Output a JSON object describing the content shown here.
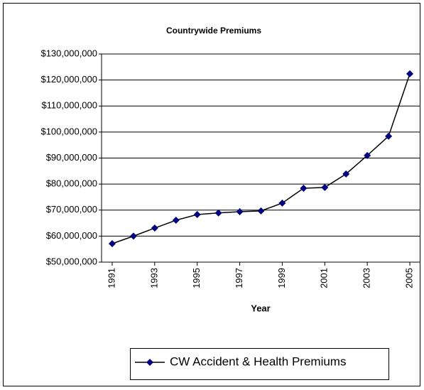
{
  "chart_data": {
    "type": "line",
    "title": "Countrywide Premiums",
    "x_label": "Year",
    "x": [
      1991,
      1992,
      1993,
      1994,
      1995,
      1996,
      1997,
      1998,
      1999,
      2000,
      2001,
      2002,
      2003,
      2004,
      2005
    ],
    "xlim": [
      1990.5,
      2005.5
    ],
    "xticks": [
      1991,
      1993,
      1995,
      1997,
      1999,
      2001,
      2003,
      2005
    ],
    "series": [
      {
        "name": "CW Accident & Health Premiums",
        "color": "#000080",
        "values": [
          57100000,
          60000000,
          63100000,
          66100000,
          68300000,
          68900000,
          69400000,
          69700000,
          72700000,
          78400000,
          78700000,
          83900000,
          91000000,
          98400000,
          122400000
        ]
      }
    ],
    "line_color": "#000000",
    "ylim": [
      50000000,
      130000000
    ],
    "yticks": [
      {
        "value": 50000000,
        "label": "$50,000,000"
      },
      {
        "value": 60000000,
        "label": "$60,000,000"
      },
      {
        "value": 70000000,
        "label": "$70,000,000"
      },
      {
        "value": 80000000,
        "label": "$80,000,000"
      },
      {
        "value": 90000000,
        "label": "$90,000,000"
      },
      {
        "value": 100000000,
        "label": "$100,000,000"
      },
      {
        "value": 110000000,
        "label": "$110,000,000"
      },
      {
        "value": 120000000,
        "label": "$120,000,000"
      },
      {
        "value": 130000000,
        "label": "$130,000,000"
      }
    ],
    "grid": true,
    "legend": "bottom"
  }
}
